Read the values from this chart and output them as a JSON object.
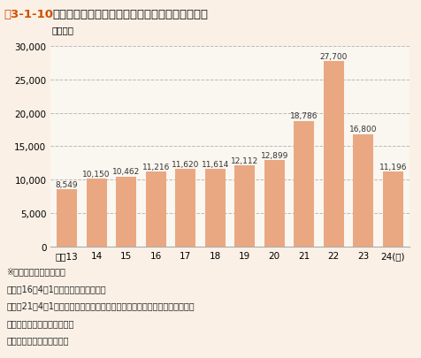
{
  "title_prefix": "図3-1-10",
  "title_main": "　全国の指定引取場所における廃家電の引取台数",
  "ylabel": "（千台）",
  "categories": [
    "平成13",
    "14",
    "15",
    "16",
    "17",
    "18",
    "19",
    "20",
    "21",
    "22",
    "23",
    "24(年)"
  ],
  "values": [
    8549,
    10150,
    10462,
    11216,
    11620,
    11614,
    12112,
    12899,
    18786,
    27700,
    16800,
    11196
  ],
  "bar_color": "#EAA882",
  "ylim": [
    0,
    30000
  ],
  "yticks": [
    0,
    5000,
    10000,
    15000,
    20000,
    25000,
    30000
  ],
  "grid_color": "#BBBBBB",
  "fig_bg_color": "#FAF0E6",
  "plot_bg_color": "#FAF6F0",
  "note_lines": [
    "※　家電の品目追加経緯",
    "　平成16年4月1日　電気冷凍庫を追加",
    "　平成21年4月1日　液晶式及びプラズマ式テレビジョン受信機、衣類乾燥機",
    "　　　　　　　　　　を追加",
    "資料：環境省、経済産業省"
  ],
  "title_prefix_color": "#D05000",
  "title_main_color": "#111111",
  "font_size_title": 9.5,
  "font_size_label": 7.5,
  "font_size_note": 7.0,
  "font_size_bar_label": 6.5
}
